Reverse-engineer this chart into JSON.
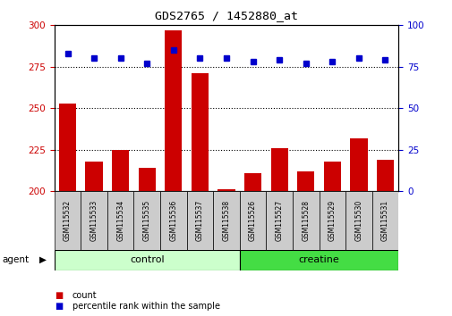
{
  "title": "GDS2765 / 1452880_at",
  "samples": [
    "GSM115532",
    "GSM115533",
    "GSM115534",
    "GSM115535",
    "GSM115536",
    "GSM115537",
    "GSM115538",
    "GSM115526",
    "GSM115527",
    "GSM115528",
    "GSM115529",
    "GSM115530",
    "GSM115531"
  ],
  "counts": [
    253,
    218,
    225,
    214,
    297,
    271,
    201,
    211,
    226,
    212,
    218,
    232,
    219
  ],
  "percentile_ranks": [
    83,
    80,
    80,
    77,
    85,
    80,
    80,
    78,
    79,
    77,
    78,
    80,
    79
  ],
  "ylim_left": [
    200,
    300
  ],
  "ylim_right": [
    0,
    100
  ],
  "yticks_left": [
    200,
    225,
    250,
    275,
    300
  ],
  "yticks_right": [
    0,
    25,
    50,
    75,
    100
  ],
  "bar_color": "#cc0000",
  "dot_color": "#0000cc",
  "groups": [
    {
      "label": "control",
      "start": 0,
      "end": 7,
      "color": "#ccffcc"
    },
    {
      "label": "creatine",
      "start": 7,
      "end": 13,
      "color": "#44dd44"
    }
  ],
  "agent_label": "agent",
  "legend_count_label": "count",
  "legend_pct_label": "percentile rank within the sample",
  "tick_area_bg": "#cccccc",
  "bar_bottom": 200,
  "hgrid_lines": [
    225,
    250,
    275
  ],
  "figsize": [
    5.06,
    3.54
  ],
  "dpi": 100
}
